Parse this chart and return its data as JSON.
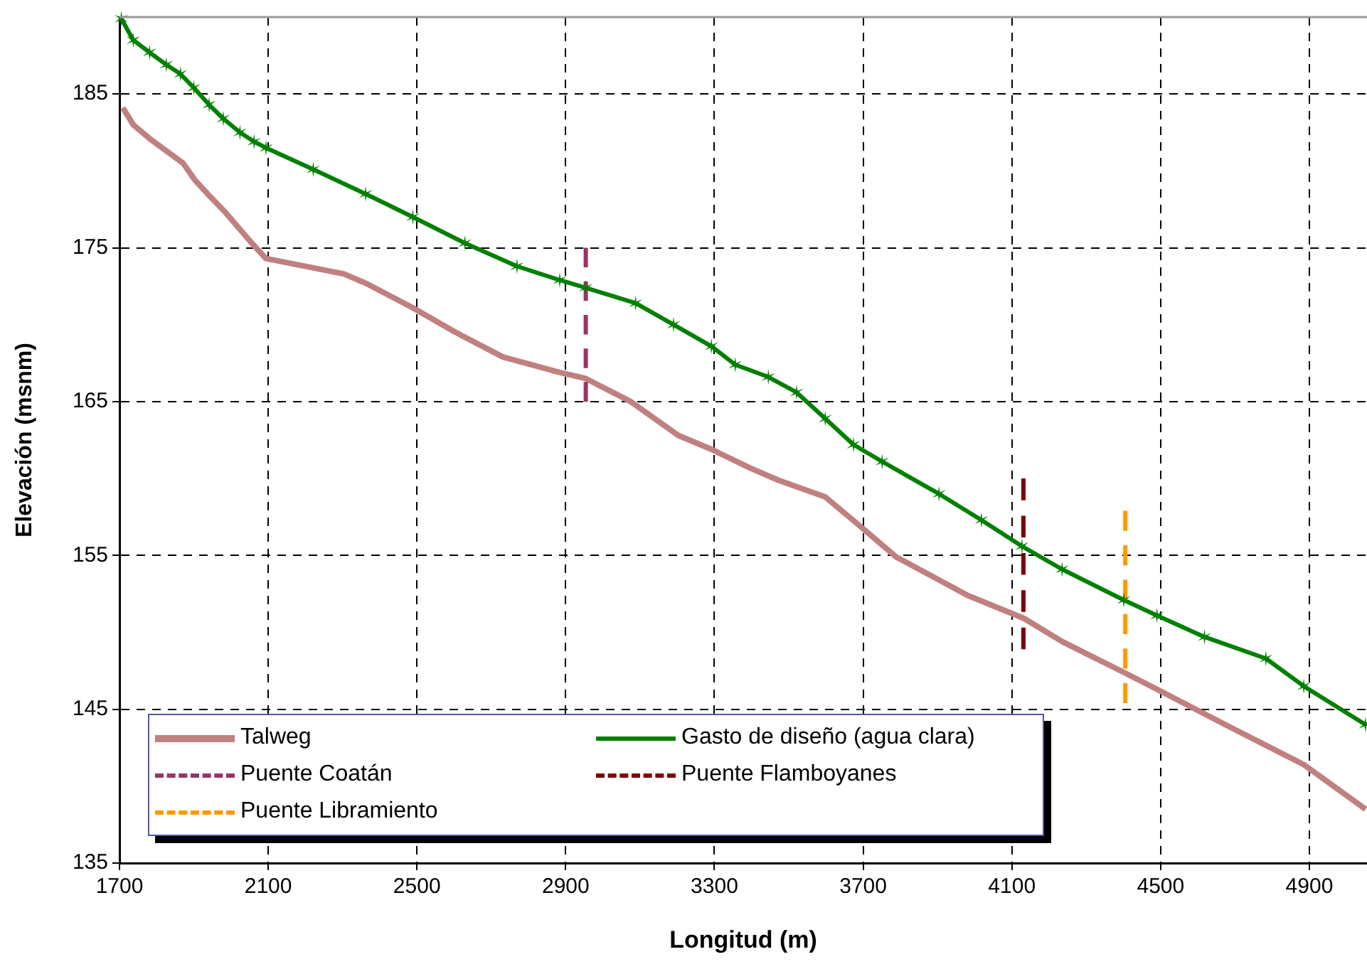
{
  "chart_data": {
    "type": "line",
    "xlabel": "Longitud (m)",
    "ylabel": "Elevación (msnm)",
    "xlim": [
      1700,
      5055
    ],
    "xticks": [
      1700,
      2100,
      2500,
      2900,
      3300,
      3700,
      4100,
      4500,
      4900
    ],
    "ylim": [
      135,
      190
    ],
    "yticks": [
      135,
      145,
      155,
      165,
      175,
      185
    ],
    "grid": true,
    "legend": "bottom left",
    "series": [
      {
        "name": "Talweg",
        "color": "#c08080",
        "marker": "none",
        "line_style": "solid",
        "x": [
          1709,
          1737,
          1781,
          1826,
          1871,
          1903,
          1941,
          1985,
          2024,
          2056,
          2094,
          2304,
          2362,
          2489,
          2604,
          2731,
          2884,
          2954,
          3075,
          3203,
          3292,
          3394,
          3471,
          3598,
          3687,
          3789,
          3981,
          4133,
          4235,
          4401,
          4490,
          4682,
          4885,
          5051
        ],
        "values": [
          184.1,
          183.0,
          182.1,
          181.3,
          180.5,
          179.4,
          178.4,
          177.3,
          176.2,
          175.3,
          174.3,
          173.3,
          172.7,
          171.1,
          169.5,
          167.9,
          166.9,
          166.5,
          165.0,
          162.8,
          161.9,
          160.7,
          159.9,
          158.8,
          157.0,
          154.9,
          152.4,
          150.9,
          149.4,
          147.4,
          146.3,
          143.9,
          141.4,
          138.5
        ]
      },
      {
        "name": "Gasto de diseño (agua clara)",
        "color": "#008000",
        "marker": "cross",
        "line_style": "solid",
        "x": [
          1705,
          1737,
          1781,
          1826,
          1864,
          1900,
          1941,
          1979,
          2024,
          2062,
          2094,
          2221,
          2362,
          2489,
          2629,
          2769,
          2884,
          2954,
          3088,
          3190,
          3292,
          3356,
          3445,
          3521,
          3598,
          3674,
          3751,
          3904,
          4018,
          4127,
          4235,
          4401,
          4490,
          4618,
          4783,
          4885,
          5051
        ],
        "values": [
          189.9,
          188.5,
          187.7,
          186.9,
          186.3,
          185.4,
          184.3,
          183.4,
          182.5,
          181.9,
          181.5,
          180.1,
          178.5,
          177.0,
          175.3,
          173.8,
          172.9,
          172.4,
          171.4,
          170.0,
          168.6,
          167.4,
          166.6,
          165.6,
          163.9,
          162.2,
          161.1,
          159.0,
          157.3,
          155.6,
          154.1,
          152.1,
          151.1,
          149.7,
          148.3,
          146.5,
          144.0
        ]
      },
      {
        "name": "Puente Coatán",
        "color": "#993366",
        "marker": "none",
        "line_style": "dashed",
        "x": [
          2954,
          2954
        ],
        "values": [
          165.0,
          175.0
        ]
      },
      {
        "name": "Puente Flamboyanes",
        "color": "#800000",
        "marker": "none",
        "line_style": "dashed",
        "x": [
          4131,
          4131
        ],
        "values": [
          148.9,
          160.0
        ]
      },
      {
        "name": "Puente Libramiento",
        "color": "#ff9900",
        "marker": "none",
        "line_style": "dashed",
        "x": [
          4405,
          4405
        ],
        "values": [
          145.4,
          157.9
        ]
      }
    ]
  }
}
